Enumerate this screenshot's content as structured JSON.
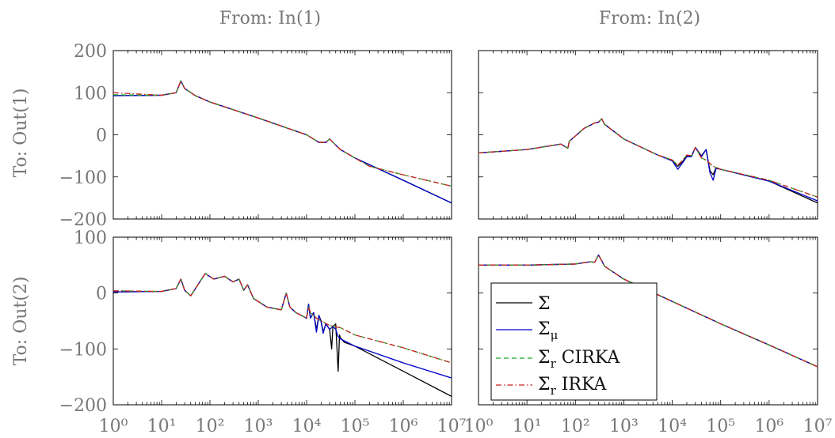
{
  "figure": {
    "column_titles": [
      "From: In(1)",
      "From: In(2)"
    ],
    "row_labels": [
      "To: Out(1)",
      "To: Out(2)"
    ]
  },
  "legend": {
    "placement": "lower-left of bottom-right panel",
    "entries": [
      {
        "id": "sigma",
        "label": "Σ",
        "sub": "",
        "suffix": "",
        "color": "#000000",
        "dash": "solid"
      },
      {
        "id": "sigma_mu",
        "label": "Σ",
        "sub": "μ",
        "suffix": "",
        "color": "#0000cc",
        "dash": "solid"
      },
      {
        "id": "cirka",
        "label": "Σ",
        "sub": "r",
        "suffix": " CIRKA",
        "color": "#22aa22",
        "dash": "dashed"
      },
      {
        "id": "irka",
        "label": "Σ",
        "sub": "r",
        "suffix": " IRKA",
        "color": "#cc2222",
        "dash": "dash-dot"
      }
    ]
  },
  "chart_data": [
    {
      "type": "line",
      "row": 0,
      "col": 0,
      "xscale": "log",
      "title": "From: In(1)",
      "ylabel": "To: Out(1)",
      "xlim": [
        1,
        10000000
      ],
      "ylim": [
        -200,
        200
      ],
      "yticks": [
        -200,
        -100,
        0,
        100,
        200
      ],
      "xticks": [
        1,
        10,
        100,
        1000,
        10000,
        100000,
        1000000,
        10000000
      ],
      "grid": false,
      "series": [
        {
          "name": "Σ",
          "x": [
            1,
            10,
            20,
            25,
            30,
            50,
            100,
            1000,
            10000,
            18000,
            25000,
            30000,
            35000,
            50000,
            100000,
            1000000,
            10000000
          ],
          "y": [
            93,
            94,
            100,
            128,
            110,
            93,
            78,
            40,
            0,
            -18,
            -18,
            -10,
            -18,
            -35,
            -55,
            -108,
            -162
          ]
        },
        {
          "name": "Σμ",
          "x": [
            1,
            10,
            20,
            25,
            30,
            50,
            100,
            1000,
            10000,
            18000,
            25000,
            30000,
            35000,
            50000,
            100000,
            1000000,
            10000000
          ],
          "y": [
            93,
            94,
            100,
            128,
            110,
            93,
            78,
            40,
            0,
            -18,
            -18,
            -10,
            -18,
            -35,
            -55,
            -108,
            -162
          ]
        },
        {
          "name": "Σr CIRKA",
          "x": [
            1,
            10,
            20,
            25,
            30,
            50,
            100,
            1000,
            10000,
            18000,
            25000,
            30000,
            35000,
            50000,
            100000,
            200000,
            1000000,
            10000000
          ],
          "y": [
            95,
            94,
            100,
            128,
            110,
            93,
            78,
            40,
            0,
            -18,
            -18,
            -10,
            -18,
            -35,
            -55,
            -75,
            -95,
            -122
          ]
        },
        {
          "name": "Σr IRKA",
          "x": [
            1,
            10,
            20,
            25,
            30,
            50,
            100,
            1000,
            10000,
            18000,
            25000,
            30000,
            35000,
            50000,
            100000,
            200000,
            1000000,
            10000000
          ],
          "y": [
            100,
            94,
            100,
            128,
            110,
            93,
            78,
            40,
            0,
            -18,
            -18,
            -10,
            -18,
            -35,
            -55,
            -75,
            -95,
            -122
          ]
        }
      ]
    },
    {
      "type": "line",
      "row": 0,
      "col": 1,
      "xscale": "log",
      "title": "From: In(2)",
      "ylabel": "",
      "xlim": [
        1,
        10000000
      ],
      "ylim": [
        -200,
        200
      ],
      "yticks": [],
      "xticks": [],
      "grid": false,
      "series": [
        {
          "name": "Σ",
          "x": [
            1,
            10,
            50,
            70,
            75,
            85,
            150,
            250,
            300,
            350,
            400,
            1000,
            5000,
            10000,
            13000,
            16000,
            20000,
            25000,
            30000,
            40000,
            50000,
            60000,
            70000,
            80000,
            100000,
            1000000,
            10000000
          ],
          "y": [
            -43,
            -35,
            -22,
            -32,
            -15,
            -10,
            15,
            28,
            30,
            38,
            25,
            -10,
            -48,
            -60,
            -75,
            -65,
            -50,
            -50,
            -30,
            -50,
            -35,
            -85,
            -95,
            -78,
            -82,
            -110,
            -162
          ]
        },
        {
          "name": "Σμ",
          "x": [
            1,
            10,
            50,
            70,
            75,
            85,
            150,
            250,
            300,
            350,
            400,
            1000,
            5000,
            10000,
            13000,
            16000,
            20000,
            25000,
            30000,
            40000,
            50000,
            60000,
            70000,
            80000,
            100000,
            1000000,
            10000000
          ],
          "y": [
            -43,
            -35,
            -22,
            -32,
            -15,
            -10,
            15,
            28,
            30,
            38,
            25,
            -10,
            -48,
            -62,
            -82,
            -68,
            -52,
            -52,
            -30,
            -52,
            -35,
            -90,
            -108,
            -80,
            -82,
            -110,
            -157
          ]
        },
        {
          "name": "Σr CIRKA",
          "x": [
            1,
            10,
            50,
            70,
            75,
            85,
            150,
            250,
            300,
            350,
            400,
            1000,
            5000,
            10000,
            13000,
            16000,
            20000,
            25000,
            30000,
            40000,
            50000,
            70000,
            100000,
            1000000,
            10000000
          ],
          "y": [
            -43,
            -35,
            -22,
            -32,
            -15,
            -10,
            15,
            28,
            30,
            38,
            25,
            -10,
            -48,
            -60,
            -72,
            -62,
            -48,
            -50,
            -30,
            -55,
            -60,
            -75,
            -82,
            -108,
            -148
          ]
        },
        {
          "name": "Σr IRKA",
          "x": [
            1,
            10,
            50,
            70,
            75,
            85,
            150,
            250,
            300,
            350,
            400,
            1000,
            5000,
            10000,
            13000,
            16000,
            20000,
            25000,
            30000,
            40000,
            50000,
            70000,
            100000,
            1000000,
            10000000
          ],
          "y": [
            -43,
            -35,
            -22,
            -32,
            -15,
            -10,
            15,
            28,
            30,
            38,
            25,
            -10,
            -48,
            -60,
            -72,
            -62,
            -48,
            -50,
            -30,
            -55,
            -60,
            -75,
            -82,
            -108,
            -148
          ]
        }
      ]
    },
    {
      "type": "line",
      "row": 1,
      "col": 0,
      "xscale": "log",
      "title": "",
      "ylabel": "To: Out(2)",
      "xlim": [
        1,
        10000000
      ],
      "ylim": [
        -200,
        100
      ],
      "yticks": [
        -200,
        -100,
        0,
        100
      ],
      "xticks": [
        1,
        10,
        100,
        1000,
        10000,
        100000,
        1000000,
        10000000
      ],
      "xticklabels": [
        "10⁰",
        "10¹",
        "10²",
        "10³",
        "10⁴",
        "10⁵",
        "10⁶",
        "10⁷"
      ],
      "grid": false,
      "series": [
        {
          "name": "Σ",
          "x": [
            1,
            10,
            20,
            25,
            30,
            40,
            80,
            120,
            200,
            300,
            400,
            500,
            600,
            800,
            1000,
            1500,
            3000,
            3800,
            4500,
            6000,
            10000,
            11000,
            12000,
            14000,
            16000,
            18000,
            20000,
            22000,
            25000,
            30000,
            33000,
            35000,
            40000,
            45000,
            48000,
            50000,
            60000,
            100000,
            1000000,
            10000000
          ],
          "y": [
            2,
            3,
            8,
            25,
            5,
            -5,
            35,
            25,
            30,
            20,
            25,
            5,
            15,
            -10,
            -15,
            -25,
            -30,
            0,
            -25,
            -35,
            -45,
            -20,
            -45,
            -35,
            -65,
            -40,
            -50,
            -70,
            -55,
            -65,
            -100,
            -60,
            -55,
            -140,
            -75,
            -80,
            -88,
            -95,
            -140,
            -185
          ]
        },
        {
          "name": "Σμ",
          "x": [
            1,
            10,
            20,
            25,
            30,
            40,
            80,
            120,
            200,
            300,
            400,
            500,
            600,
            800,
            1000,
            1500,
            3000,
            3800,
            4500,
            6000,
            10000,
            11000,
            12000,
            14000,
            16000,
            18000,
            20000,
            22000,
            25000,
            30000,
            35000,
            40000,
            45000,
            50000,
            100000,
            1000000,
            10000000
          ],
          "y": [
            2,
            3,
            8,
            25,
            5,
            -5,
            35,
            25,
            30,
            20,
            25,
            5,
            15,
            -10,
            -15,
            -25,
            -30,
            0,
            -25,
            -35,
            -45,
            -20,
            -45,
            -35,
            -70,
            -40,
            -52,
            -72,
            -55,
            -65,
            -60,
            -65,
            -78,
            -82,
            -95,
            -125,
            -152
          ]
        },
        {
          "name": "Σr CIRKA",
          "x": [
            1,
            10,
            20,
            25,
            30,
            40,
            80,
            120,
            200,
            300,
            400,
            500,
            600,
            800,
            1000,
            1500,
            3000,
            3800,
            4500,
            6000,
            10000,
            11000,
            12000,
            14000,
            16000,
            20000,
            30000,
            50000,
            100000,
            1000000,
            10000000
          ],
          "y": [
            4,
            3,
            8,
            25,
            5,
            -5,
            35,
            25,
            30,
            20,
            25,
            5,
            15,
            -10,
            -15,
            -25,
            -30,
            0,
            -25,
            -35,
            -45,
            -25,
            -35,
            -40,
            -45,
            -50,
            -58,
            -62,
            -75,
            -98,
            -125
          ]
        },
        {
          "name": "Σr IRKA",
          "x": [
            1,
            10,
            20,
            25,
            30,
            40,
            80,
            120,
            200,
            300,
            400,
            500,
            600,
            800,
            1000,
            1500,
            3000,
            3800,
            4500,
            6000,
            10000,
            11000,
            12000,
            14000,
            16000,
            20000,
            30000,
            50000,
            100000,
            1000000,
            10000000
          ],
          "y": [
            4,
            3,
            8,
            25,
            5,
            -5,
            35,
            25,
            30,
            20,
            25,
            5,
            15,
            -10,
            -15,
            -25,
            -30,
            0,
            -25,
            -35,
            -45,
            -25,
            -35,
            -40,
            -45,
            -50,
            -58,
            -62,
            -75,
            -98,
            -125
          ]
        }
      ]
    },
    {
      "type": "line",
      "row": 1,
      "col": 1,
      "xscale": "log",
      "title": "",
      "ylabel": "",
      "xlim": [
        1,
        10000000
      ],
      "ylim": [
        -200,
        100
      ],
      "yticks": [],
      "xticks": [
        1,
        10,
        100,
        1000,
        10000,
        100000,
        1000000,
        10000000
      ],
      "xticklabels": [
        "10⁰",
        "10¹",
        "10²",
        "10³",
        "10⁴",
        "10⁵",
        "10⁶",
        "10⁷"
      ],
      "grid": false,
      "series": [
        {
          "name": "Σ",
          "x": [
            1,
            10,
            100,
            200,
            250,
            300,
            350,
            400,
            1000,
            10000,
            100000,
            1000000,
            10000000
          ],
          "y": [
            50,
            50,
            52,
            56,
            55,
            68,
            58,
            48,
            25,
            -15,
            -55,
            -93,
            -132
          ]
        },
        {
          "name": "Σμ",
          "x": [
            1,
            10,
            100,
            200,
            250,
            300,
            350,
            400,
            1000,
            10000,
            100000,
            1000000,
            10000000
          ],
          "y": [
            50,
            50,
            52,
            56,
            55,
            68,
            58,
            48,
            25,
            -15,
            -55,
            -93,
            -132
          ]
        },
        {
          "name": "Σr CIRKA",
          "x": [
            1,
            10,
            100,
            200,
            250,
            300,
            350,
            400,
            1000,
            10000,
            100000,
            1000000,
            10000000
          ],
          "y": [
            50,
            50,
            52,
            56,
            55,
            68,
            58,
            48,
            25,
            -15,
            -55,
            -93,
            -132
          ]
        },
        {
          "name": "Σr IRKA",
          "x": [
            1,
            10,
            100,
            200,
            250,
            300,
            350,
            400,
            1000,
            10000,
            100000,
            1000000,
            10000000
          ],
          "y": [
            50,
            50,
            52,
            56,
            55,
            68,
            58,
            48,
            25,
            -15,
            -55,
            -93,
            -132
          ]
        }
      ]
    }
  ]
}
